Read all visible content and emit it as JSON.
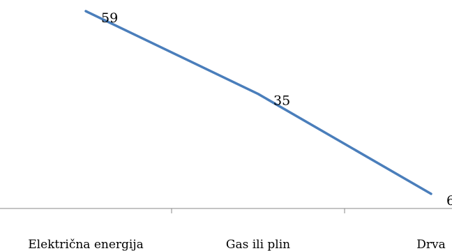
{
  "chart_data": {
    "type": "line",
    "categories": [
      "Električna energija",
      "Gas ili plin",
      "Drva"
    ],
    "series": [
      {
        "values": [
          59,
          35,
          6
        ],
        "color": "#4a7ebb"
      }
    ],
    "ylim": [
      0,
      62
    ],
    "grid": false,
    "legend": "none",
    "axis_color": "#888888"
  }
}
